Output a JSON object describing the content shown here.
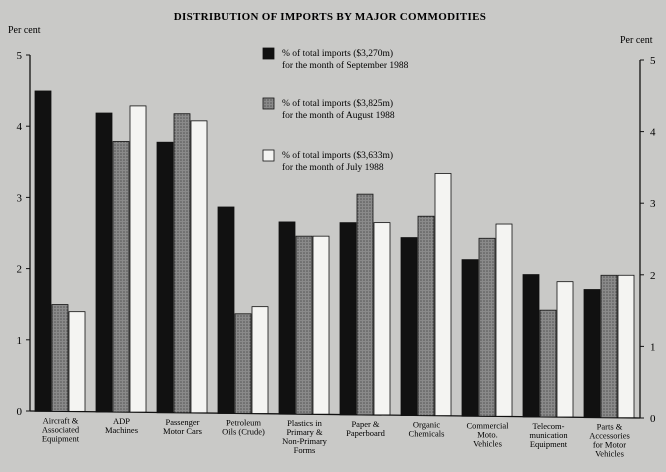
{
  "chart_data": {
    "type": "bar",
    "title": "DISTRIBUTION OF IMPORTS BY MAJOR COMMODITIES",
    "ylabel_left": "Per cent",
    "ylabel_right": "Per cent",
    "ylim": [
      0,
      5
    ],
    "yticks": [
      "0",
      "1",
      "2",
      "3",
      "4",
      "5"
    ],
    "grid": false,
    "legend_position": "top-center",
    "categories": [
      [
        "Aircraft &",
        "Associated",
        "Equipment"
      ],
      [
        "ADP",
        "Machines"
      ],
      [
        "Passenger",
        "Motor Cars"
      ],
      [
        "Petroleum",
        "Oils (Crude)"
      ],
      [
        "Plastics in",
        "Primary &",
        "Non-Primary",
        "Forms"
      ],
      [
        "Paper &",
        "Paperboard"
      ],
      [
        "Organic",
        "Chemicals"
      ],
      [
        "Commercial",
        "Moto.",
        "Vehicles"
      ],
      [
        "Telecom-",
        "munication",
        "Equipment"
      ],
      [
        "Parts &",
        "Accessories",
        "for Motor",
        "Vehicles"
      ]
    ],
    "series": [
      {
        "name": [
          "% of total imports ($3,270m)",
          "for the month of September 1988"
        ],
        "color": "#111111",
        "values": [
          4.5,
          4.2,
          3.8,
          2.9,
          2.7,
          2.7,
          2.5,
          2.2,
          2.0,
          1.8
        ]
      },
      {
        "name": [
          "% of total imports ($3,825m)",
          "for the month of August 1988"
        ],
        "color": "#7d7d7d",
        "values": [
          1.5,
          3.8,
          4.2,
          1.4,
          2.5,
          3.1,
          2.8,
          2.5,
          1.5,
          2.0
        ]
      },
      {
        "name": [
          "% of total imports ($3,633m)",
          "for the month of July 1988"
        ],
        "color": "#f4f4f2",
        "values": [
          1.4,
          4.3,
          4.1,
          1.5,
          2.5,
          2.7,
          3.4,
          2.7,
          1.9,
          2.0
        ]
      }
    ]
  }
}
